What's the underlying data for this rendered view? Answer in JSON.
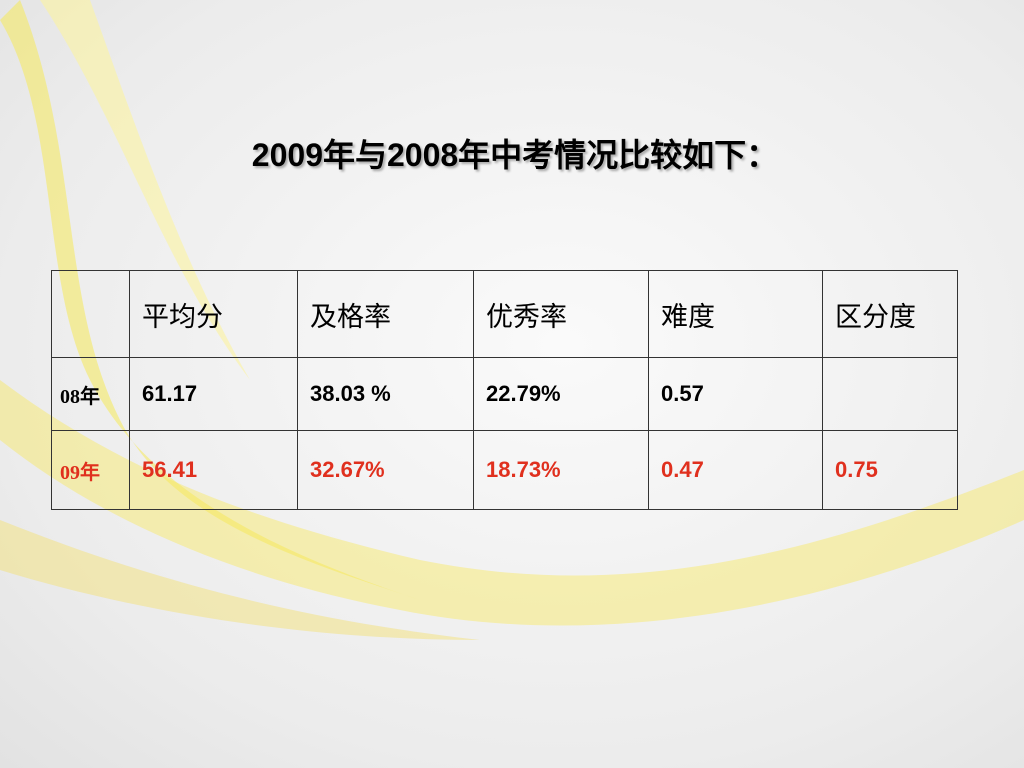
{
  "header": {
    "title": "2009年与2008年中考情况比较如下："
  },
  "table": {
    "columns": [
      "平均分",
      "及格率",
      "优秀率",
      "难度",
      "区分度"
    ],
    "rows": [
      {
        "label": "08年",
        "color": "#000000",
        "cells": [
          "61.17",
          "38.03 %",
          "22.79%",
          "0.57",
          null
        ]
      },
      {
        "label": "09年",
        "color": "#e0301e",
        "cells": [
          "56.41",
          "32.67%",
          "18.73%",
          "0.47",
          "0.75"
        ]
      }
    ]
  }
}
